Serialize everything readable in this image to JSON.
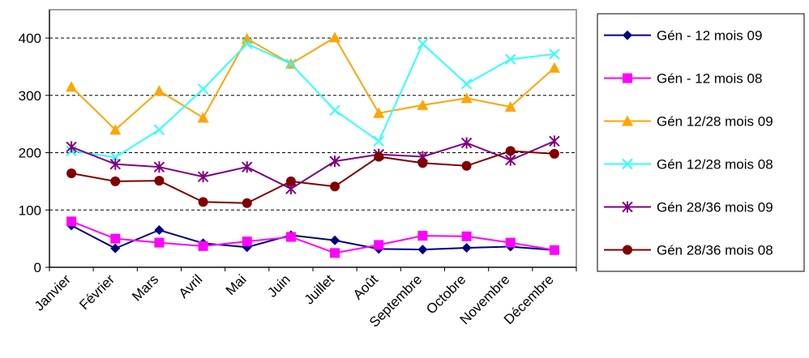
{
  "chart_data": {
    "type": "line",
    "title": "",
    "xlabel": "",
    "ylabel": "",
    "ylim": [
      0,
      400
    ],
    "yticks": [
      0,
      100,
      200,
      300,
      400
    ],
    "grid": "horizontal dashed",
    "legend_position": "right",
    "categories": [
      "Janvier",
      "Février",
      "Mars",
      "Avril",
      "Mai",
      "Juin",
      "Juillet",
      "Août",
      "Septembre",
      "Octobre",
      "Novembre",
      "Décembre"
    ],
    "series": [
      {
        "name": "Gén - 12 mois 09",
        "color": "#000080",
        "marker": "diamond",
        "values": [
          73,
          33,
          65,
          42,
          35,
          56,
          47,
          32,
          31,
          34,
          36,
          30
        ]
      },
      {
        "name": "Gén - 12 mois 08",
        "color": "#ff00ff",
        "marker": "square",
        "values": [
          80,
          50,
          43,
          37,
          45,
          53,
          25,
          39,
          55,
          54,
          43,
          30
        ]
      },
      {
        "name": "Gén 12/28 mois 09",
        "color": "#ffa500",
        "marker": "triangle",
        "values": [
          315,
          240,
          308,
          261,
          399,
          355,
          401,
          269,
          283,
          295,
          280,
          348
        ]
      },
      {
        "name": "Gén 12/28 mois 08",
        "color": "#33ffff",
        "marker": "x",
        "values": [
          203,
          192,
          240,
          311,
          390,
          355,
          274,
          220,
          390,
          320,
          363,
          372
        ]
      },
      {
        "name": "Gén 28/36 mois 09",
        "color": "#800080",
        "marker": "star",
        "values": [
          210,
          180,
          175,
          158,
          175,
          137,
          185,
          197,
          193,
          217,
          187,
          220
        ]
      },
      {
        "name": "Gén 28/36 mois 08",
        "color": "#800000",
        "marker": "circle",
        "values": [
          164,
          150,
          151,
          114,
          112,
          150,
          141,
          193,
          182,
          177,
          203,
          198
        ]
      }
    ]
  }
}
